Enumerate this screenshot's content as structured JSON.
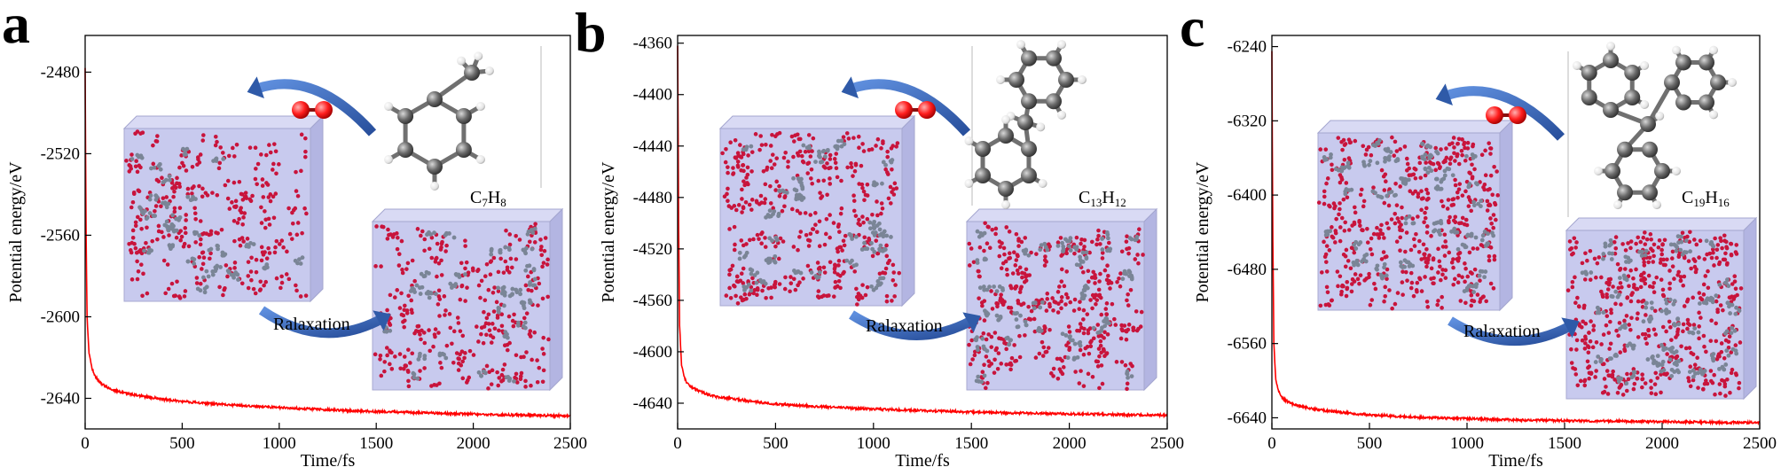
{
  "colors": {
    "curve": "#ff0000",
    "box_fill": "#c6c8ee",
    "box_edge": "#a4a6cf",
    "arrow": "#3a68bd",
    "oxygen": "#ff2020",
    "carbon": "#5e5e5e",
    "hydrogen": "#e9e9e9",
    "atom_o_small": "#c8143c",
    "atom_c_small": "#7a8596"
  },
  "chart_data": [
    {
      "panel_label": "a",
      "type": "line",
      "xlabel": "Time/fs",
      "ylabel": "Potential energy/eV",
      "xlim": [
        0,
        2500
      ],
      "ylim": [
        -2655,
        -2462
      ],
      "xticks": [
        0,
        500,
        1000,
        1500,
        2000,
        2500
      ],
      "yticks": [
        -2480,
        -2520,
        -2560,
        -2600,
        -2640
      ],
      "series": [
        {
          "x": [
            0,
            5,
            10,
            20,
            35,
            50,
            75,
            100,
            150,
            200,
            300,
            400,
            500,
            700,
            900,
            1100,
            1300,
            1500,
            1700,
            1900,
            2100,
            2300,
            2500
          ],
          "y": [
            -2478,
            -2560,
            -2600,
            -2618,
            -2625,
            -2629,
            -2632,
            -2634,
            -2636,
            -2637.5,
            -2639,
            -2640.5,
            -2641.5,
            -2643,
            -2644,
            -2645,
            -2645.8,
            -2646.5,
            -2647,
            -2647.5,
            -2648,
            -2648.3,
            -2648.6
          ]
        }
      ],
      "formula": {
        "main": "C",
        "sub1": "7",
        "mid": "H",
        "sub2": "8"
      },
      "annotation": "Ralaxation",
      "molecule": "toluene"
    },
    {
      "panel_label": "b",
      "type": "line",
      "xlabel": "Time/fs",
      "ylabel": "Potential energy/eV",
      "xlim": [
        0,
        2500
      ],
      "ylim": [
        -4660,
        -4354
      ],
      "xticks": [
        0,
        500,
        1000,
        1500,
        2000,
        2500
      ],
      "yticks": [
        -4360,
        -4400,
        -4440,
        -4480,
        -4520,
        -4560,
        -4600,
        -4640
      ],
      "series": [
        {
          "x": [
            0,
            5,
            10,
            20,
            35,
            50,
            75,
            100,
            150,
            200,
            300,
            400,
            500,
            700,
            900,
            1100,
            1300,
            1500,
            1700,
            1900,
            2100,
            2300,
            2500
          ],
          "y": [
            -4362,
            -4500,
            -4580,
            -4610,
            -4620,
            -4625,
            -4628,
            -4630,
            -4633,
            -4635,
            -4637,
            -4639,
            -4640.5,
            -4642.5,
            -4644,
            -4645,
            -4646,
            -4647,
            -4647.5,
            -4648,
            -4648.5,
            -4649,
            -4649.3
          ]
        }
      ],
      "formula": {
        "main": "C",
        "sub1": "13",
        "mid": "H",
        "sub2": "12"
      },
      "annotation": "Ralaxation",
      "molecule": "biphenylmethane"
    },
    {
      "panel_label": "c",
      "type": "line",
      "xlabel": "Time/fs",
      "ylabel": "Potential energy/eV",
      "xlim": [
        0,
        2500
      ],
      "ylim": [
        -6652,
        -6228
      ],
      "xticks": [
        0,
        500,
        1000,
        1500,
        2000,
        2500
      ],
      "yticks": [
        -6240,
        -6320,
        -6400,
        -6480,
        -6560,
        -6640
      ],
      "series": [
        {
          "x": [
            0,
            5,
            10,
            20,
            35,
            50,
            75,
            100,
            150,
            200,
            300,
            400,
            500,
            700,
            900,
            1100,
            1300,
            1500,
            1700,
            1900,
            2100,
            2300,
            2500
          ],
          "y": [
            -6245,
            -6450,
            -6560,
            -6600,
            -6612,
            -6618,
            -6622,
            -6625,
            -6628,
            -6630,
            -6633,
            -6635,
            -6637,
            -6639,
            -6640.5,
            -6641.5,
            -6642.5,
            -6643,
            -6643.5,
            -6644,
            -6644.5,
            -6645,
            -6645.2
          ]
        }
      ],
      "formula": {
        "main": "C",
        "sub1": "19",
        "mid": "H",
        "sub2": "16"
      },
      "annotation": "Ralaxation",
      "molecule": "triphenylmethane"
    }
  ]
}
